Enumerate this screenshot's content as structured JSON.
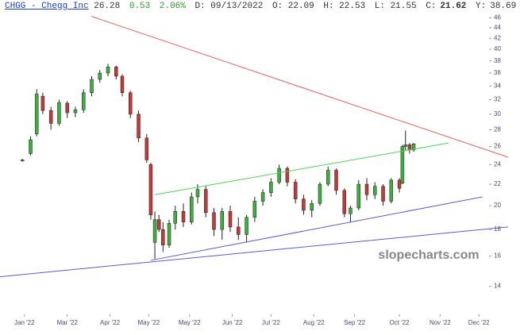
{
  "header": {
    "symbol": "CHGG - Chegg Inc",
    "last": "26.28",
    "change": "0.53",
    "change_pct": "2.06%",
    "date": "D: 09/13/2022",
    "open": "O: 22.09",
    "high": "H: 22.53",
    "low": "L: 21.55",
    "close_label": "C:",
    "close": "21.62",
    "y_label": "Y:",
    "y_value": "38.69"
  },
  "watermark": "slopecharts.com",
  "chart_data": {
    "type": "candlestick",
    "log_scale": true,
    "up_color": "#3fae3f",
    "down_color": "#c23b3b",
    "xlim": [
      0,
      240
    ],
    "ylim": [
      12.4,
      48.9
    ],
    "xticks": [
      {
        "value": 12,
        "label": "Jan '22"
      },
      {
        "value": 33,
        "label": "Mar '22"
      },
      {
        "value": 54,
        "label": "Apr '22"
      },
      {
        "value": 73,
        "label": "May '22"
      },
      {
        "value": 93,
        "label": "May '22"
      },
      {
        "value": 114,
        "label": "Jun '22"
      },
      {
        "value": 133,
        "label": "Jul '22"
      },
      {
        "value": 154,
        "label": "Aug '22"
      },
      {
        "value": 174,
        "label": "Sep '22"
      },
      {
        "value": 196,
        "label": "Oct '22"
      },
      {
        "value": 216,
        "label": "Nov '22"
      },
      {
        "value": 235,
        "label": "Dec '22"
      }
    ],
    "yticks": [
      14,
      16,
      18,
      20,
      22,
      24,
      26,
      28,
      30,
      32,
      34,
      36,
      38,
      40,
      42,
      44,
      46
    ],
    "x": [
      11,
      15,
      18,
      21,
      25,
      29,
      33,
      37,
      41,
      45,
      49,
      53,
      57,
      60,
      64,
      68,
      72,
      74,
      76,
      78,
      80,
      83,
      86,
      90,
      94,
      97,
      101,
      105,
      109,
      113,
      117,
      121,
      125,
      129,
      133,
      137,
      141,
      145,
      149,
      153,
      157,
      161,
      165,
      169,
      172,
      176,
      180,
      184,
      188,
      192,
      196,
      197.5,
      199,
      201,
      203
    ],
    "open": [
      24.4,
      25.2,
      27.5,
      32.5,
      30.5,
      28.8,
      31.5,
      30.2,
      30.6,
      33.0,
      35.0,
      36.0,
      37.0,
      35.5,
      33.0,
      30.0,
      27.0,
      24.0,
      17.0,
      18.8,
      18.0,
      16.8,
      18.5,
      19.5,
      18.6,
      20.8,
      21.5,
      19.4,
      18.0,
      19.5,
      18.2,
      17.6,
      19.0,
      20.4,
      21.2,
      22.2,
      23.6,
      22.2,
      20.6,
      19.6,
      20.2,
      22.0,
      23.4,
      21.4,
      19.3,
      19.8,
      22.0,
      21.0,
      21.8,
      20.4,
      22.4,
      22.1,
      26.0,
      26.2,
      25.6
    ],
    "high": [
      24.6,
      27.2,
      33.5,
      33.0,
      31.0,
      32.0,
      31.8,
      31.0,
      33.5,
      35.5,
      36.5,
      37.5,
      37.2,
      35.8,
      33.3,
      30.5,
      27.5,
      24.2,
      19.5,
      19.2,
      18.6,
      18.8,
      20.0,
      20.2,
      21.2,
      22.0,
      21.8,
      19.8,
      19.8,
      20.0,
      19.0,
      19.2,
      20.8,
      21.5,
      22.6,
      24.0,
      23.8,
      22.5,
      21.0,
      20.5,
      22.2,
      23.8,
      23.6,
      21.6,
      20.0,
      22.4,
      22.6,
      22.2,
      22.0,
      22.6,
      22.6,
      26.2,
      27.9,
      26.4,
      26.4
    ],
    "low": [
      24.3,
      25.0,
      27.2,
      30.0,
      28.0,
      28.5,
      29.5,
      29.6,
      30.2,
      32.5,
      34.5,
      35.5,
      35.0,
      32.5,
      29.5,
      26.5,
      24.2,
      18.8,
      15.8,
      17.8,
      16.3,
      16.6,
      18.0,
      18.2,
      18.4,
      20.2,
      19.0,
      17.5,
      17.2,
      17.8,
      17.2,
      17.0,
      18.6,
      20.0,
      20.8,
      22.0,
      21.8,
      20.2,
      19.2,
      19.0,
      20.0,
      21.8,
      21.0,
      19.0,
      18.6,
      19.6,
      20.5,
      20.6,
      20.0,
      20.2,
      21.2,
      22.0,
      25.6,
      25.2,
      25.4
    ],
    "close": [
      24.5,
      26.8,
      32.8,
      30.5,
      28.8,
      31.6,
      30.2,
      30.6,
      33.0,
      35.0,
      36.0,
      37.0,
      35.5,
      33.0,
      30.0,
      27.0,
      24.5,
      19.2,
      18.8,
      18.0,
      16.8,
      18.5,
      19.5,
      18.6,
      20.8,
      21.5,
      19.4,
      18.0,
      19.5,
      18.2,
      17.6,
      19.0,
      20.4,
      21.2,
      22.2,
      23.6,
      22.2,
      20.6,
      19.6,
      20.2,
      22.0,
      23.4,
      21.4,
      19.3,
      19.8,
      22.0,
      21.0,
      21.8,
      20.4,
      22.4,
      21.6,
      26.0,
      26.2,
      25.6,
      26.3
    ],
    "trendlines": [
      {
        "color": "#e8605a",
        "x": [
          44.8,
          249.3
        ],
        "y": [
          46.3,
          24.8
        ]
      },
      {
        "color": "#4cd64c",
        "x": [
          76,
          220
        ],
        "y": [
          21.0,
          26.4
        ]
      },
      {
        "color": "#5a5ad8",
        "x": [
          0,
          249.3
        ],
        "y": [
          14.6,
          18.2
        ]
      },
      {
        "color": "#5a5ad8",
        "x": [
          74,
          236.8
        ],
        "y": [
          15.7,
          20.8
        ]
      }
    ]
  }
}
